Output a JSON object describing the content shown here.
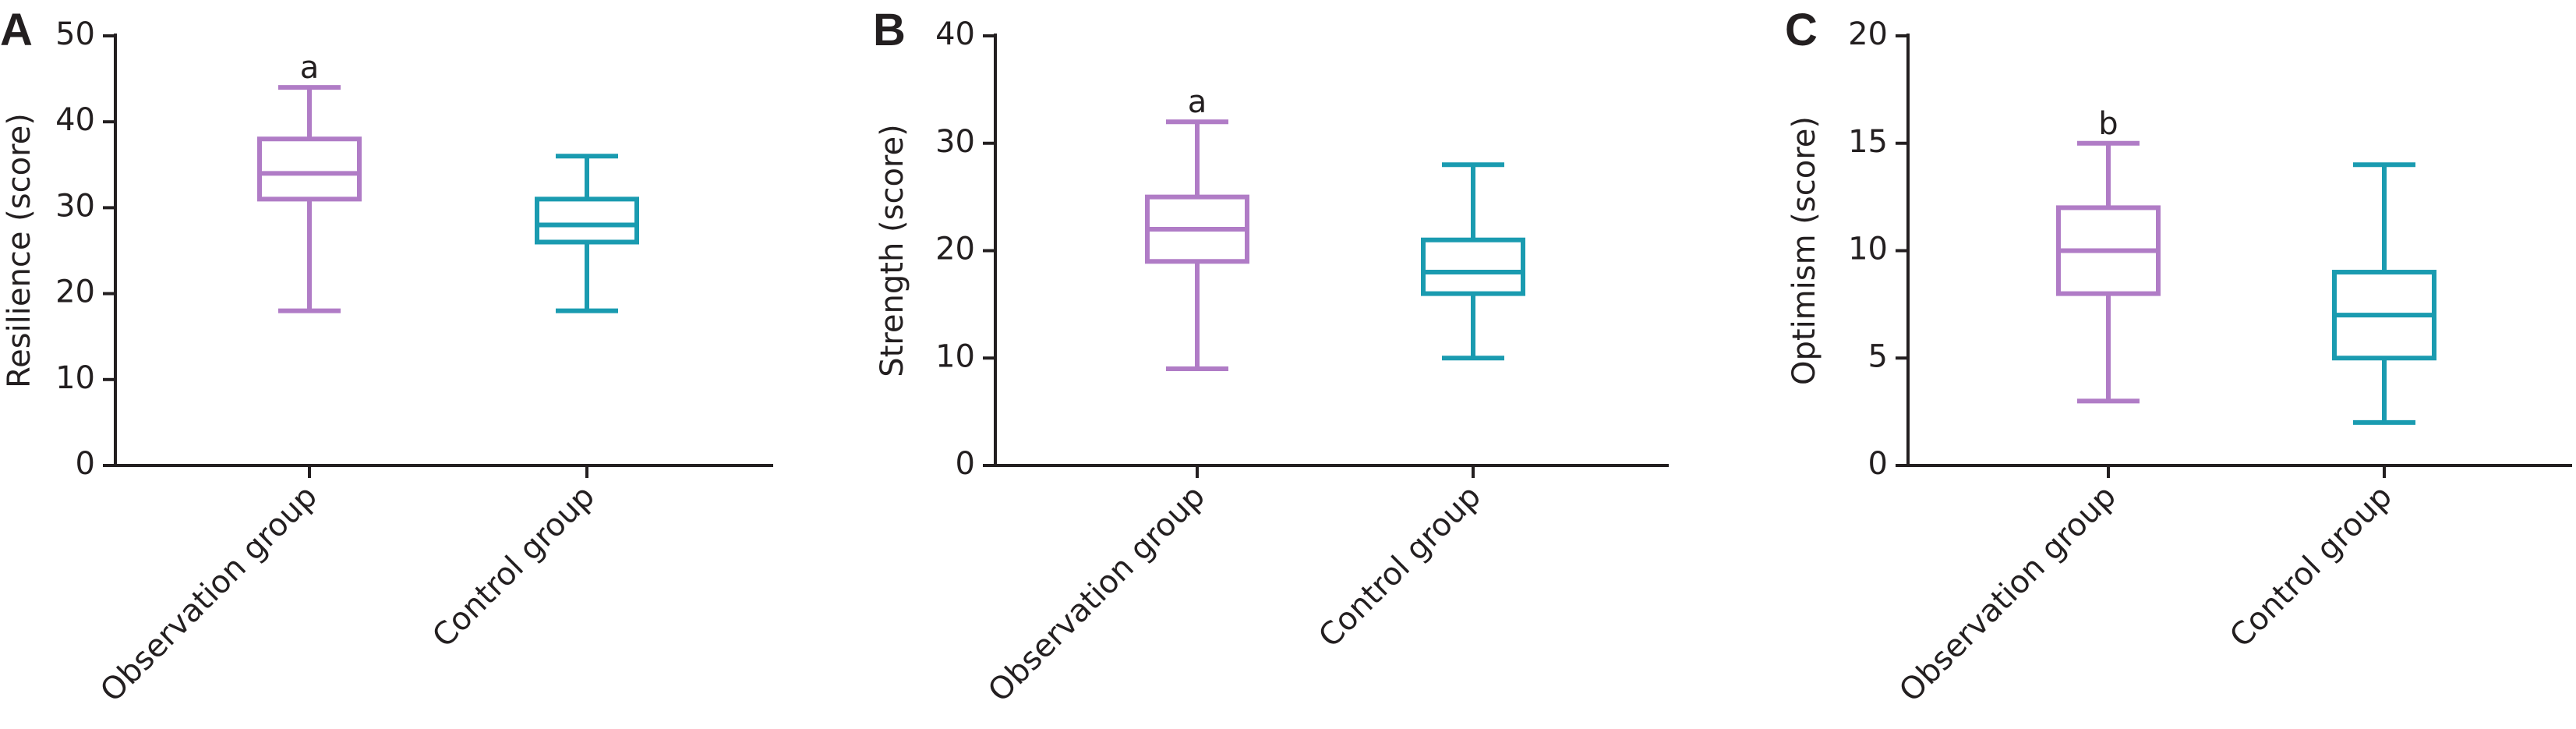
{
  "chart_data": [
    {
      "type": "box",
      "panel_label": "A",
      "ylabel": "Resilience (score)",
      "categories": [
        "Observation group",
        "Control group"
      ],
      "colors": [
        "#b07cc6",
        "#1a9bb0"
      ],
      "min": [
        18,
        18
      ],
      "q1": [
        31,
        26
      ],
      "median": [
        34,
        28
      ],
      "q3": [
        38,
        31
      ],
      "max": [
        44,
        36
      ],
      "annotations": [
        "a",
        null
      ],
      "ylim": [
        0,
        50
      ],
      "yticks": [
        0,
        10,
        20,
        30,
        40,
        50
      ]
    },
    {
      "type": "box",
      "panel_label": "B",
      "ylabel": "Strength (score)",
      "categories": [
        "Observation group",
        "Control group"
      ],
      "colors": [
        "#b07cc6",
        "#1a9bb0"
      ],
      "min": [
        9,
        10
      ],
      "q1": [
        19,
        16
      ],
      "median": [
        22,
        18
      ],
      "q3": [
        25,
        21
      ],
      "max": [
        32,
        28
      ],
      "annotations": [
        "a",
        null
      ],
      "ylim": [
        0,
        40
      ],
      "yticks": [
        0,
        10,
        20,
        30,
        40
      ]
    },
    {
      "type": "box",
      "panel_label": "C",
      "ylabel": "Optimism (score)",
      "categories": [
        "Observation group",
        "Control group"
      ],
      "colors": [
        "#b07cc6",
        "#1a9bb0"
      ],
      "min": [
        3,
        2
      ],
      "q1": [
        8,
        5
      ],
      "median": [
        10,
        7
      ],
      "q3": [
        12,
        9
      ],
      "max": [
        15,
        14
      ],
      "annotations": [
        "b",
        null
      ],
      "ylim": [
        0,
        20
      ],
      "yticks": [
        0,
        5,
        10,
        15,
        20
      ]
    }
  ]
}
